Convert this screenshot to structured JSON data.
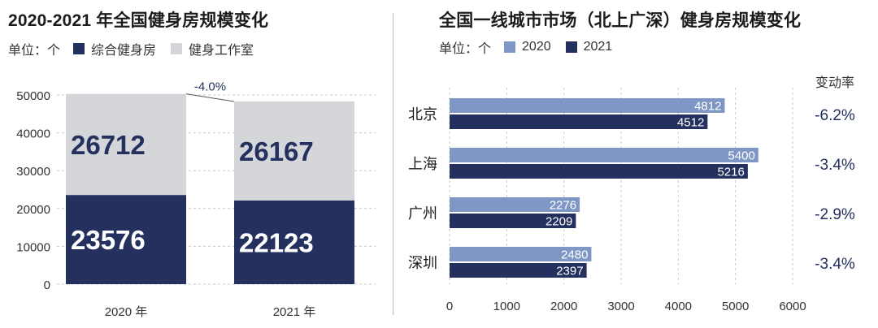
{
  "colors": {
    "dark_navy": "#24305e",
    "light_gray": "#d4d6d9",
    "light_blue": "#7e97c4",
    "text_dark": "#1b1b1b",
    "grid": "#c8c8c8"
  },
  "left_panel": {
    "title": "2020-2021 年全国健身房规模变化",
    "unit_label": "单位：个",
    "legend": [
      {
        "label": "综合健身房",
        "color": "#24305e"
      },
      {
        "label": "健身工作室",
        "color": "#d4d6d9"
      }
    ]
  },
  "right_panel": {
    "title": "全国一线城市市场（北上广深）健身房规模变化",
    "unit_label": "单位：个",
    "legend": [
      {
        "label": "2020",
        "color": "#7e97c4"
      },
      {
        "label": "2021",
        "color": "#24305e"
      }
    ],
    "change_header": "变动率"
  },
  "chart_data": [
    {
      "type": "bar",
      "stacked": true,
      "title": "2020-2021 年全国健身房规模变化",
      "unit": "单位：个",
      "categories": [
        "2020 年",
        "2021 年"
      ],
      "series": [
        {
          "name": "综合健身房",
          "values": [
            23576,
            22123
          ],
          "labels": [
            "23576",
            "22123"
          ],
          "color": "#24305e"
        },
        {
          "name": "健身工作室",
          "values": [
            26712,
            26167
          ],
          "labels": [
            "26712",
            "26167"
          ],
          "color": "#d4d6d9"
        }
      ],
      "total_change_label": "-4.0%",
      "ylim": [
        0,
        50000
      ],
      "yticks": [
        0,
        10000,
        20000,
        30000,
        40000,
        50000
      ],
      "ytick_labels": [
        "0",
        "10000",
        "20000",
        "30000",
        "40000",
        "50000"
      ],
      "grid": true
    },
    {
      "type": "bar",
      "orientation": "horizontal",
      "title": "全国一线城市市场（北上广深）健身房规模变化",
      "unit": "单位：个",
      "categories": [
        "北京",
        "上海",
        "广州",
        "深圳"
      ],
      "series": [
        {
          "name": "2020",
          "values": [
            4812,
            5400,
            2276,
            2480
          ],
          "labels": [
            "4812",
            "5400",
            "2276",
            "2480"
          ],
          "color": "#7e97c4"
        },
        {
          "name": "2021",
          "values": [
            4512,
            5216,
            2209,
            2397
          ],
          "labels": [
            "4512",
            "5216",
            "2209",
            "2397"
          ],
          "color": "#24305e"
        }
      ],
      "change_rates": [
        "-6.2%",
        "-3.4%",
        "-2.9%",
        "-3.4%"
      ],
      "xlim": [
        0,
        6000
      ],
      "xticks": [
        0,
        1000,
        2000,
        3000,
        4000,
        5000,
        6000
      ],
      "xtick_labels": [
        "0",
        "1000",
        "2000",
        "3000",
        "4000",
        "5000",
        "6000"
      ],
      "grid": true
    }
  ]
}
